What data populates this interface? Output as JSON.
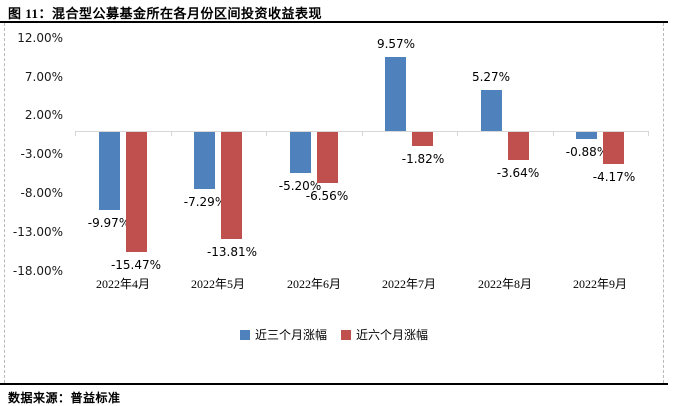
{
  "figure": {
    "title": "图 11：混合型公募基金所在各月份区间投资收益表现",
    "source": "数据来源：普益标准"
  },
  "chart_data": {
    "type": "bar",
    "title": "图 11：混合型公募基金所在各月份区间投资收益表现",
    "categories": [
      "2022年4月",
      "2022年5月",
      "2022年6月",
      "2022年7月",
      "2022年8月",
      "2022年9月"
    ],
    "series": [
      {
        "name": "近三个月涨幅",
        "color": "#4F81BD",
        "values": [
          -9.97,
          -7.29,
          -5.2,
          9.57,
          5.27,
          -0.88
        ],
        "labels": [
          "-9.97%",
          "-7.29%",
          "-5.20%",
          "9.57%",
          "5.27%",
          "-0.88%"
        ]
      },
      {
        "name": "近六个月涨幅",
        "color": "#C0504D",
        "values": [
          -15.47,
          -13.81,
          -6.56,
          -1.82,
          -3.64,
          -4.17
        ],
        "labels": [
          "-15.47%",
          "-13.81%",
          "-6.56%",
          "-1.82%",
          "-3.64%",
          "-4.17%"
        ]
      }
    ],
    "y_axis": {
      "ticks": [
        12,
        7,
        2,
        -3,
        -8,
        -13,
        -18
      ],
      "tick_labels": [
        "12.00%",
        "7.00%",
        "2.00%",
        "-3.00%",
        "-8.00%",
        "-13.00%",
        "-18.00%"
      ],
      "min": -18,
      "max": 12,
      "unit": "percent"
    },
    "xlabel": "",
    "ylabel": "",
    "grid": false,
    "legend_position": "bottom",
    "axis_color": "#D6D6D6"
  }
}
